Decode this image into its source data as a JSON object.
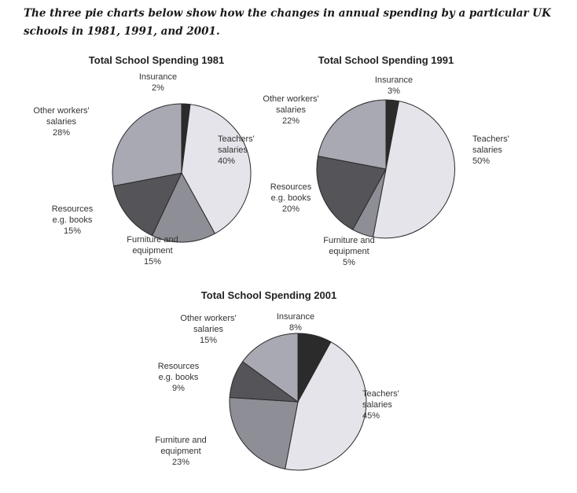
{
  "intro": {
    "text": "The three pie charts below show how the changes in annual spending by a particular UK schools in 1981, 1991, and 2001."
  },
  "chart_data": [
    {
      "type": "pie",
      "title": "Total School Spending 1981",
      "slices": [
        {
          "label": [
            "Insurance",
            "2%"
          ],
          "value": 2,
          "color": "#2b2b2b"
        },
        {
          "label": [
            "Teachers'",
            "salaries",
            "40%"
          ],
          "value": 40,
          "color": "#e4e4ea"
        },
        {
          "label": [
            "Furniture and",
            "equipment",
            "15%"
          ],
          "value": 15,
          "color": "#8e8e96"
        },
        {
          "label": [
            "Resources",
            "e.g. books",
            "15%"
          ],
          "value": 15,
          "color": "#545459"
        },
        {
          "label": [
            "Other workers'",
            "salaries",
            "28%"
          ],
          "value": 28,
          "color": "#a9a9b3"
        }
      ]
    },
    {
      "type": "pie",
      "title": "Total School Spending 1991",
      "slices": [
        {
          "label": [
            "Insurance",
            "3%"
          ],
          "value": 3,
          "color": "#2b2b2b"
        },
        {
          "label": [
            "Teachers'",
            "salaries",
            "50%"
          ],
          "value": 50,
          "color": "#e4e4ea"
        },
        {
          "label": [
            "Furniture and",
            "equipment",
            "5%"
          ],
          "value": 5,
          "color": "#8e8e96"
        },
        {
          "label": [
            "Resources",
            "e.g. books",
            "20%"
          ],
          "value": 20,
          "color": "#545459"
        },
        {
          "label": [
            "Other workers'",
            "salaries",
            "22%"
          ],
          "value": 22,
          "color": "#a9a9b3"
        }
      ]
    },
    {
      "type": "pie",
      "title": "Total School Spending 2001",
      "slices": [
        {
          "label": [
            "Insurance",
            "8%"
          ],
          "value": 8,
          "color": "#2b2b2b"
        },
        {
          "label": [
            "Teachers'",
            "salaries",
            "45%"
          ],
          "value": 45,
          "color": "#e4e4ea"
        },
        {
          "label": [
            "Furniture and",
            "equipment",
            "23%"
          ],
          "value": 23,
          "color": "#8e8e96"
        },
        {
          "label": [
            "Resources",
            "e.g. books",
            "9%"
          ],
          "value": 9,
          "color": "#545459"
        },
        {
          "label": [
            "Other workers'",
            "salaries",
            "15%"
          ],
          "value": 15,
          "color": "#a9a9b3"
        }
      ]
    }
  ]
}
